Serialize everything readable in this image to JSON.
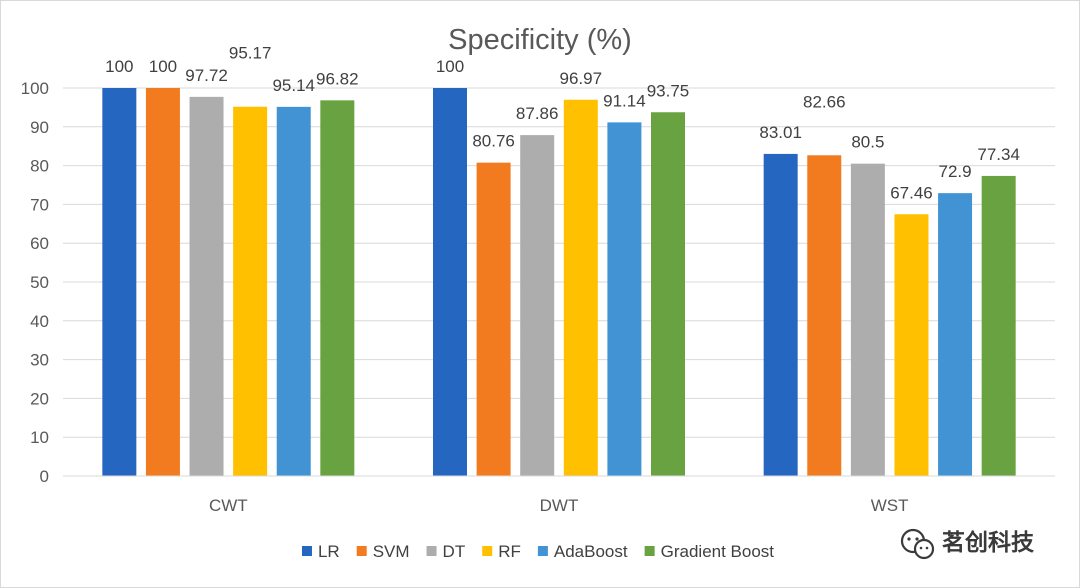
{
  "chart_data": {
    "type": "bar",
    "title": "Specificity (%)",
    "xlabel": "",
    "ylabel": "",
    "ylim": [
      0,
      100
    ],
    "yticks": [
      0,
      10,
      20,
      30,
      40,
      50,
      60,
      70,
      80,
      90,
      100
    ],
    "grid": true,
    "legend_position": "bottom",
    "categories": [
      "CWT",
      "DWT",
      "WST"
    ],
    "series": [
      {
        "name": "LR",
        "color": "#2566c0",
        "values": [
          100,
          100,
          83.01
        ]
      },
      {
        "name": "SVM",
        "color": "#f27b20",
        "values": [
          100,
          80.76,
          82.66
        ]
      },
      {
        "name": "DT",
        "color": "#adadad",
        "values": [
          97.72,
          87.86,
          80.5
        ]
      },
      {
        "name": "RF",
        "color": "#ffc000",
        "values": [
          95.17,
          96.97,
          67.46
        ]
      },
      {
        "name": "AdaBoost",
        "color": "#4193d4",
        "values": [
          95.14,
          91.14,
          72.9
        ]
      },
      {
        "name": "Gradient Boost",
        "color": "#69a240",
        "values": [
          96.82,
          93.75,
          77.34
        ]
      }
    ]
  },
  "watermark": {
    "text": "茗创科技",
    "icon": "wechat-icon"
  }
}
